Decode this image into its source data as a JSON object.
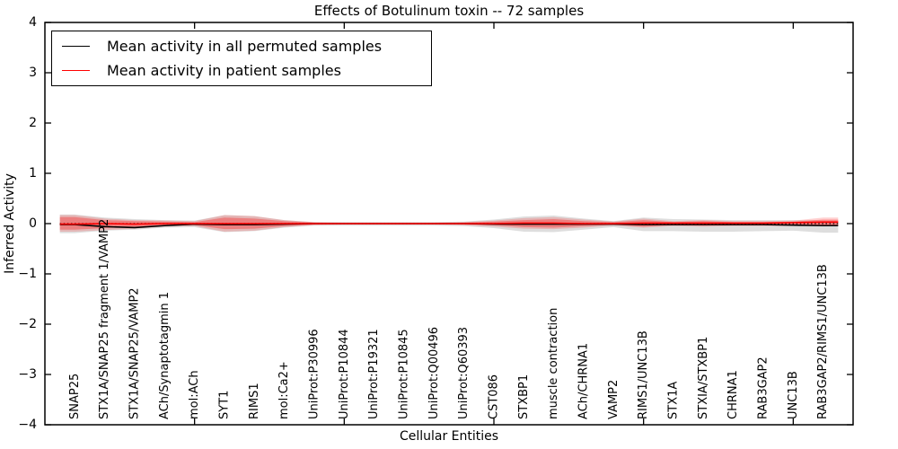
{
  "chart_data": {
    "type": "line",
    "title": "Effects of Botulinum toxin -- 72 samples",
    "xlabel": "Cellular Entities",
    "ylabel": "Inferred Activity",
    "ylim": [
      -4,
      4
    ],
    "yticks": [
      -4,
      -3,
      -2,
      -1,
      0,
      1,
      2,
      3,
      4
    ],
    "x_major_tick_indices": [
      4,
      9,
      14,
      19,
      24
    ],
    "grid": false,
    "legend": {
      "position": "upper left",
      "items": [
        {
          "label": "Mean activity in all permuted samples",
          "color": "#000000"
        },
        {
          "label": "Mean activity in patient samples",
          "color": "#ff0000"
        }
      ]
    },
    "zero_line": {
      "y": 0,
      "style": "dotted",
      "color": "#000000"
    },
    "categories": [
      "SNAP25",
      "STX1A/SNAP25 fragment 1/VAMP2",
      "STX1A/SNAP25/VAMP2",
      "ACh/Synaptotagmin 1",
      "mol:ACh",
      "SYT1",
      "RIMS1",
      "mol:Ca2+",
      "UniProt:P30996",
      "UniProt:P10844",
      "UniProt:P19321",
      "UniProt:P10845",
      "UniProt:Q00496",
      "UniProt:Q60393",
      "CST086",
      "STXBP1",
      "muscle contraction",
      "ACh/CHRNA1",
      "VAMP2",
      "RIMS1/UNC13B",
      "STX1A",
      "STXIA/STXBP1",
      "CHRNA1",
      "RAB3GAP2",
      "UNC13B",
      "RAB3GAP2/RIMS1/UNC13B"
    ],
    "series": [
      {
        "name": "Mean activity in all permuted samples",
        "color": "#000000",
        "values": [
          -0.02,
          -0.06,
          -0.08,
          -0.04,
          -0.01,
          -0.02,
          -0.02,
          -0.01,
          0,
          0,
          0,
          0,
          0,
          0,
          -0.01,
          -0.01,
          -0.01,
          -0.01,
          -0.01,
          -0.02,
          -0.02,
          -0.02,
          -0.02,
          -0.02,
          -0.03,
          -0.04
        ]
      },
      {
        "name": "Mean activity in patient samples",
        "color": "#ff0000",
        "values": [
          -0.01,
          0,
          -0.01,
          0,
          0,
          0,
          0,
          0,
          0,
          0,
          0,
          0,
          0,
          0,
          0,
          0.01,
          0.01,
          0,
          0,
          0.01,
          0.01,
          0.01,
          0.01,
          0.01,
          0.02,
          0.03
        ]
      }
    ],
    "bands": [
      {
        "name": "permuted samples spread",
        "fill": "rgba(0,0,0,0.13)",
        "upper": [
          0.18,
          0.12,
          0.09,
          0.07,
          0.06,
          0.17,
          0.15,
          0.07,
          0.03,
          0.03,
          0.03,
          0.03,
          0.03,
          0.04,
          0.08,
          0.14,
          0.16,
          0.1,
          0.05,
          0.12,
          0.09,
          0.08,
          0.07,
          0.07,
          0.07,
          0.06
        ],
        "lower": [
          -0.19,
          -0.14,
          -0.12,
          -0.08,
          -0.07,
          -0.17,
          -0.15,
          -0.08,
          -0.04,
          -0.04,
          -0.04,
          -0.04,
          -0.04,
          -0.05,
          -0.09,
          -0.16,
          -0.17,
          -0.12,
          -0.07,
          -0.15,
          -0.15,
          -0.16,
          -0.16,
          -0.15,
          -0.14,
          -0.18
        ]
      },
      {
        "name": "patient samples spread outer",
        "fill": "rgba(255,0,0,0.18)",
        "upper": [
          0.17,
          0.1,
          0.07,
          0.06,
          0.05,
          0.17,
          0.15,
          0.07,
          0.03,
          0.02,
          0.02,
          0.02,
          0.02,
          0.03,
          0.06,
          0.11,
          0.13,
          0.08,
          0.04,
          0.1,
          0.05,
          0.07,
          0.05,
          0.05,
          0.06,
          0.12
        ],
        "lower": [
          -0.16,
          -0.13,
          -0.1,
          -0.06,
          -0.05,
          -0.16,
          -0.14,
          -0.07,
          -0.03,
          -0.02,
          -0.02,
          -0.02,
          -0.02,
          -0.03,
          -0.06,
          -0.1,
          -0.11,
          -0.08,
          -0.04,
          -0.08,
          -0.05,
          -0.06,
          -0.05,
          -0.05,
          -0.05,
          -0.04
        ]
      },
      {
        "name": "patient samples spread inner",
        "fill": "rgba(255,0,0,0.30)",
        "upper": [
          0.13,
          0.07,
          0.05,
          0.04,
          0.03,
          0.12,
          0.1,
          0.05,
          0.02,
          0.015,
          0.015,
          0.015,
          0.015,
          0.02,
          0.04,
          0.07,
          0.09,
          0.05,
          0.03,
          0.07,
          0.03,
          0.05,
          0.03,
          0.03,
          0.04,
          0.08
        ],
        "lower": [
          -0.12,
          -0.09,
          -0.07,
          -0.04,
          -0.03,
          -0.11,
          -0.1,
          -0.05,
          -0.02,
          -0.015,
          -0.015,
          -0.015,
          -0.015,
          -0.02,
          -0.03,
          -0.07,
          -0.08,
          -0.05,
          -0.02,
          -0.06,
          -0.03,
          -0.04,
          -0.03,
          -0.03,
          -0.035,
          -0.05
        ]
      }
    ]
  }
}
